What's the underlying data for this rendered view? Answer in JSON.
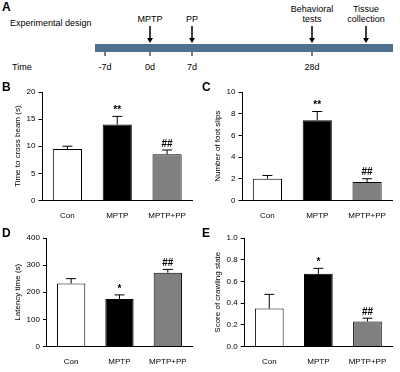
{
  "timeline": {
    "panel": "A",
    "title": "Experimental design",
    "axis_label": "Time",
    "points": [
      {
        "time": "-7d"
      },
      {
        "time": "0d",
        "event": "MPTP"
      },
      {
        "time": "7d",
        "event": "PP"
      },
      {
        "time": "28d",
        "event": "Behavioral tests"
      },
      {
        "event": "Tissue collection"
      }
    ]
  },
  "chart_data": [
    {
      "panel": "B",
      "type": "bar",
      "y_label": "Time to cross beam (s)",
      "categories": [
        "Con",
        "MPTP",
        "MPTP+PP"
      ],
      "values": [
        9.5,
        14.0,
        8.5
      ],
      "errors": [
        0.5,
        1.5,
        0.8
      ],
      "annotations": [
        null,
        "**",
        "##"
      ],
      "colors": [
        "#ffffff",
        "#000000",
        "#808080"
      ],
      "ylim": [
        0,
        20
      ],
      "yticks": [
        0,
        5,
        10,
        15,
        20
      ],
      "grid": false
    },
    {
      "panel": "C",
      "type": "bar",
      "y_label": "Number of foot slips",
      "categories": [
        "Con",
        "MPTP",
        "MPTP+PP"
      ],
      "values": [
        2.0,
        7.4,
        1.7
      ],
      "errors": [
        0.3,
        0.8,
        0.3
      ],
      "annotations": [
        null,
        "**",
        "##"
      ],
      "colors": [
        "#ffffff",
        "#000000",
        "#808080"
      ],
      "ylim": [
        0,
        10
      ],
      "yticks": [
        0,
        2,
        4,
        6,
        8,
        10
      ],
      "grid": false
    },
    {
      "panel": "D",
      "type": "bar",
      "y_label": "Latency time (s)",
      "categories": [
        "Con",
        "MPTP",
        "MPTP+PP"
      ],
      "values": [
        232,
        175,
        272
      ],
      "errors": [
        18,
        15,
        12
      ],
      "annotations": [
        null,
        "*",
        "##"
      ],
      "colors": [
        "#ffffff",
        "#000000",
        "#808080"
      ],
      "ylim": [
        0,
        400
      ],
      "yticks": [
        0,
        100,
        200,
        300,
        400
      ],
      "grid": false
    },
    {
      "panel": "E",
      "type": "bar",
      "y_label": "Score of crawling state",
      "categories": [
        "Con",
        "MPTP",
        "MPTP+PP"
      ],
      "values": [
        0.35,
        0.67,
        0.23
      ],
      "errors": [
        0.13,
        0.05,
        0.03
      ],
      "annotations": [
        null,
        "*",
        "##"
      ],
      "colors": [
        "#ffffff",
        "#000000",
        "#808080"
      ],
      "ylim": [
        0,
        1
      ],
      "yticks": [
        {
          "value": 0,
          "label": "0.0"
        },
        0.2,
        0.4,
        0.6,
        0.8,
        {
          "value": 1,
          "label": "1.0"
        }
      ],
      "grid": false
    }
  ]
}
